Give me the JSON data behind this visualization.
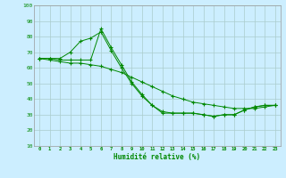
{
  "xlabel": "Humidité relative (%)",
  "bg_color": "#cceeff",
  "grid_color": "#aacccc",
  "line_color": "#008800",
  "xlim": [
    -0.5,
    23.5
  ],
  "ylim": [
    10,
    100
  ],
  "yticks": [
    10,
    20,
    30,
    40,
    50,
    60,
    70,
    80,
    90,
    100
  ],
  "xticks": [
    0,
    1,
    2,
    3,
    4,
    5,
    6,
    7,
    8,
    9,
    10,
    11,
    12,
    13,
    14,
    15,
    16,
    17,
    18,
    19,
    20,
    21,
    22,
    23
  ],
  "line1_x": [
    0,
    1,
    2,
    3,
    4,
    5,
    6,
    7,
    8,
    9,
    10,
    11,
    12,
    13,
    14,
    15,
    16,
    17,
    18,
    19,
    20,
    21,
    22,
    23
  ],
  "line1_y": [
    66,
    66,
    66,
    70,
    77,
    79,
    83,
    71,
    60,
    50,
    42,
    36,
    31,
    31,
    31,
    31,
    30,
    29,
    30,
    30,
    33,
    35,
    36,
    36
  ],
  "line2_x": [
    0,
    1,
    2,
    3,
    4,
    5,
    6,
    7,
    8,
    9,
    10,
    11,
    12,
    13,
    14,
    15,
    16,
    17,
    18,
    19,
    20,
    21,
    22,
    23
  ],
  "line2_y": [
    66,
    66,
    65,
    65,
    65,
    65,
    85,
    73,
    62,
    51,
    43,
    36,
    32,
    31,
    31,
    31,
    30,
    29,
    30,
    30,
    33,
    35,
    36,
    36
  ],
  "line3_x": [
    0,
    1,
    2,
    3,
    4,
    5,
    6,
    7,
    8,
    9,
    10,
    11,
    12,
    13,
    14,
    15,
    16,
    17,
    18,
    19,
    20,
    21,
    22,
    23
  ],
  "line3_y": [
    66,
    65,
    64,
    63,
    63,
    62,
    61,
    59,
    57,
    54,
    51,
    48,
    45,
    42,
    40,
    38,
    37,
    36,
    35,
    34,
    34,
    34,
    35,
    36
  ]
}
